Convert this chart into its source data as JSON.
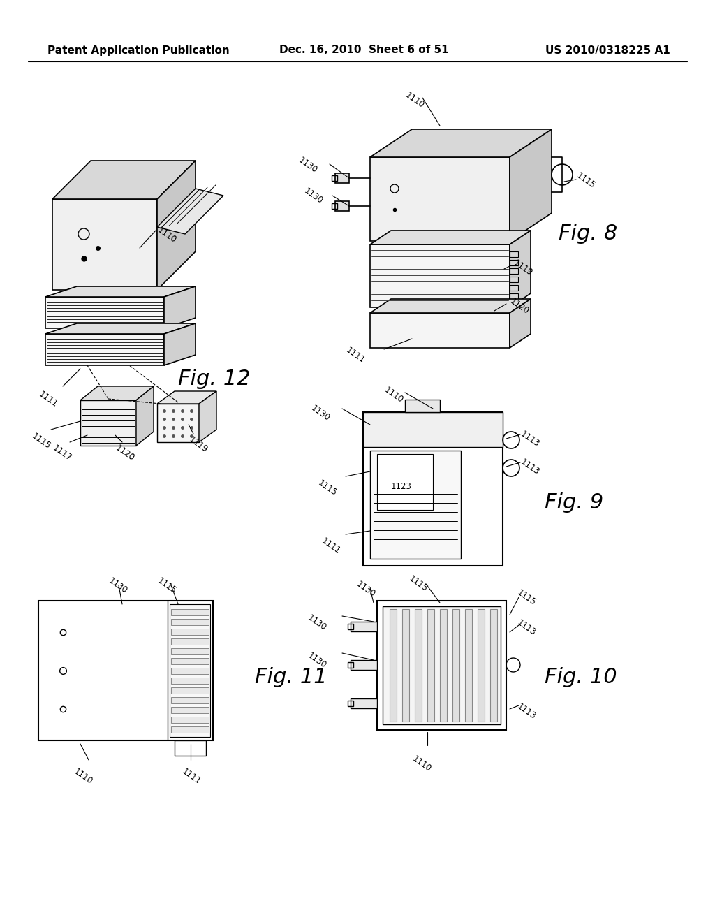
{
  "background_color": "#ffffff",
  "header_left": "Patent Application Publication",
  "header_center": "Dec. 16, 2010  Sheet 6 of 51",
  "header_right": "US 2010/0318225 A1",
  "line_color": "#000000",
  "header_fontsize": 11,
  "fig8_label": "Fig. 8",
  "fig9_label": "Fig. 9",
  "fig10_label": "Fig. 10",
  "fig11_label": "Fig. 11",
  "fig12_label": "Fig. 12",
  "fig_label_fontsize": 20,
  "ref_fontsize": 8.5
}
